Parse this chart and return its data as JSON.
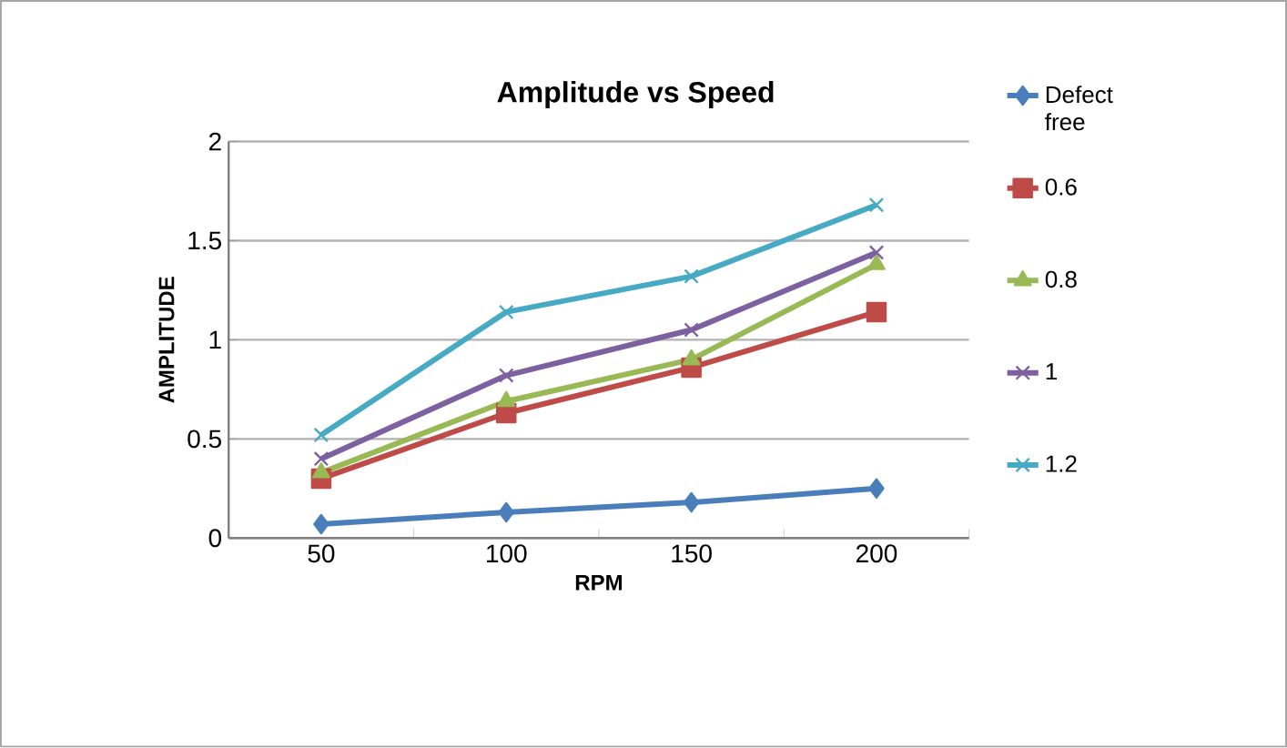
{
  "chart_data": {
    "type": "line",
    "title": "Amplitude vs Speed",
    "xlabel": "RPM",
    "ylabel": "AMPLITUDE",
    "categories": [
      "50",
      "100",
      "150",
      "200"
    ],
    "series": [
      {
        "name": "Defect free",
        "color": "#4a7ebb",
        "marker": "diamond",
        "values": [
          0.07,
          0.13,
          0.18,
          0.25
        ]
      },
      {
        "name": "0.6",
        "color": "#be4b48",
        "marker": "square",
        "values": [
          0.3,
          0.63,
          0.86,
          1.14
        ]
      },
      {
        "name": "0.8",
        "color": "#98b954",
        "marker": "triangle",
        "values": [
          0.33,
          0.69,
          0.9,
          1.38
        ]
      },
      {
        "name": "1",
        "color": "#7d60a0",
        "marker": "cross",
        "values": [
          0.4,
          0.82,
          1.05,
          1.44
        ]
      },
      {
        "name": "1.2",
        "color": "#46aac5",
        "marker": "cross",
        "values": [
          0.52,
          1.14,
          1.32,
          1.68
        ]
      }
    ],
    "ylim": [
      0,
      2
    ],
    "yticks": [
      0,
      0.5,
      1,
      1.5,
      2
    ],
    "grid": "y",
    "legend": "right",
    "line_style": "solid"
  }
}
